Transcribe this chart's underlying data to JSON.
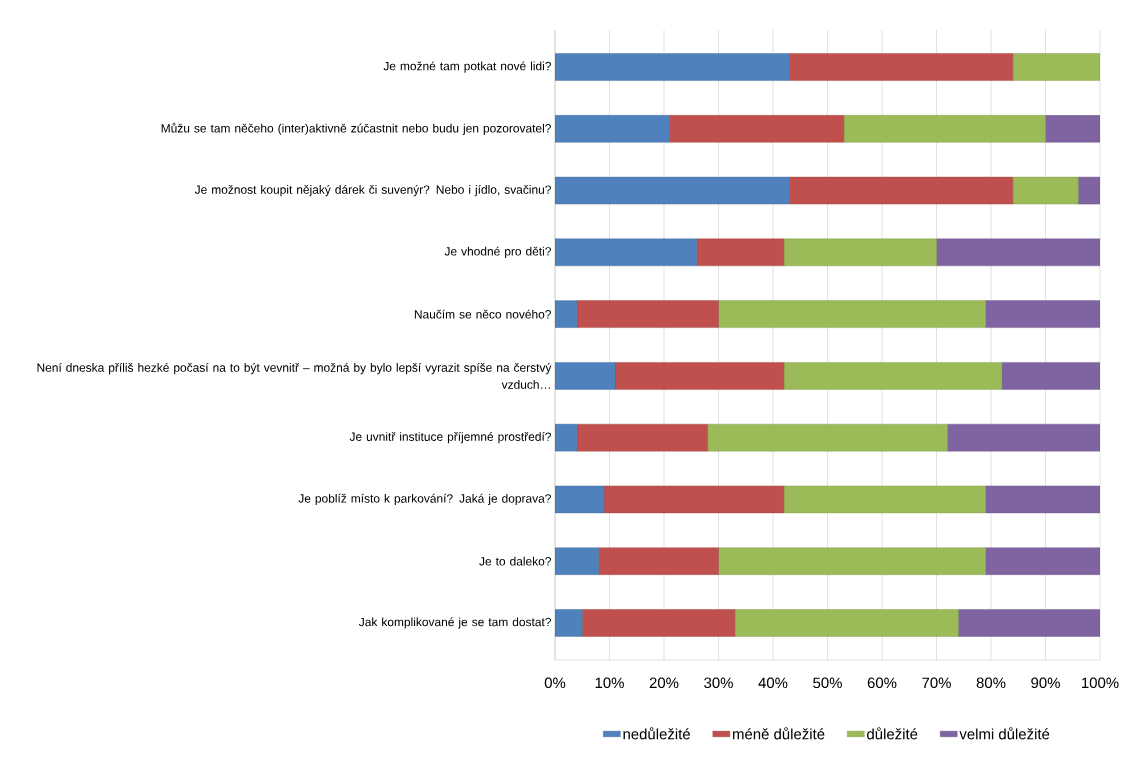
{
  "chart_data": {
    "type": "bar",
    "orientation": "horizontal",
    "stacked": true,
    "categories": [
      "Je možné tam potkat nové lidi?",
      "Můžu se tam něčeho (inter)aktivně zúčastnit nebo budu jen pozorovatel?",
      "Je možnost koupit nějaký dárek či suvenýr? Nebo i jídlo, svačinu?",
      "Je vhodné pro děti?",
      "Naučím se něco nového?",
      "Není dneska příliš hezké počasí na to být vevnitř – možná by bylo lepší vyrazit spíše na čerstvý vzduch…",
      "Je uvnitř instituce příjemné prostředí?",
      "Je poblíž místo k parkování? Jaká je doprava?",
      "Je to daleko?",
      "Jak komplikované je se tam dostat?"
    ],
    "series": [
      {
        "name": "nedůležité",
        "color": "#4f81bd",
        "values": [
          43,
          21,
          43,
          26,
          4,
          11,
          4,
          9,
          8,
          5
        ]
      },
      {
        "name": "méně důležité",
        "color": "#c0504d",
        "values": [
          41,
          32,
          41,
          16,
          26,
          31,
          24,
          33,
          22,
          28
        ]
      },
      {
        "name": "důležité",
        "color": "#9bbb59",
        "values": [
          16,
          37,
          12,
          28,
          49,
          40,
          44,
          37,
          49,
          41
        ]
      },
      {
        "name": "velmi důležité",
        "color": "#8064a2",
        "values": [
          0,
          10,
          4,
          30,
          21,
          18,
          28,
          21,
          21,
          26
        ]
      }
    ],
    "xlim": [
      0,
      100
    ],
    "xticks": [
      {
        "value": 0,
        "label": "0%"
      },
      {
        "value": 10,
        "label": "10%"
      },
      {
        "value": 20,
        "label": "20%"
      },
      {
        "value": 30,
        "label": "30%"
      },
      {
        "value": 40,
        "label": "40%"
      },
      {
        "value": 50,
        "label": "50%"
      },
      {
        "value": 60,
        "label": "60%"
      },
      {
        "value": 70,
        "label": "70%"
      },
      {
        "value": 80,
        "label": "80%"
      },
      {
        "value": 90,
        "label": "90%"
      },
      {
        "value": 100,
        "label": "100%"
      }
    ],
    "grid": "x",
    "legend": "bottom"
  }
}
